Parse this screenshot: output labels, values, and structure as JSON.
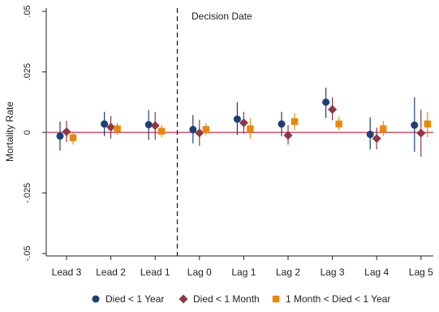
{
  "chart_data": {
    "type": "scatter",
    "ylabel": "Mortality Rate",
    "xlabel": "",
    "categories": [
      "Lead 3",
      "Lead 2",
      "Lead 1",
      "Lag 0",
      "Lag 1",
      "Lag 2",
      "Lag 3",
      "Lag 4",
      "Lag 5"
    ],
    "ylim": [
      -0.05,
      0.05
    ],
    "yticks": [
      -0.05,
      -0.025,
      0,
      0.025,
      0.05
    ],
    "ytick_labels": [
      "-.05",
      "-.025",
      "0",
      ".025",
      ".05"
    ],
    "annotation": "Decision Date",
    "decision_line_between": [
      "Lead 1",
      "Lag 0"
    ],
    "zero_line_color": "#c0506a",
    "series": [
      {
        "name": "Died < 1 Year",
        "marker": "circle",
        "color": "#1f3f73",
        "values": [
          -0.0015,
          0.0035,
          0.0032,
          0.0012,
          0.0055,
          0.0035,
          0.0125,
          -0.0008,
          0.003
        ],
        "ci_low": [
          -0.0075,
          -0.0015,
          -0.003,
          -0.0045,
          -0.001,
          -0.0015,
          0.006,
          -0.007,
          -0.008
        ],
        "ci_high": [
          0.0045,
          0.0085,
          0.0092,
          0.0072,
          0.0125,
          0.0085,
          0.0185,
          0.0062,
          0.0145
        ]
      },
      {
        "name": "Died < 1 Month",
        "marker": "diamond",
        "color": "#8e3845",
        "values": [
          0.0003,
          0.0022,
          0.0028,
          -0.0002,
          0.004,
          -0.0012,
          0.0095,
          -0.0025,
          -0.0003
        ],
        "ci_low": [
          -0.004,
          -0.0025,
          -0.003,
          -0.0055,
          -0.0005,
          -0.005,
          0.005,
          -0.007,
          -0.01
        ],
        "ci_high": [
          0.0048,
          0.0068,
          0.0085,
          0.0052,
          0.0085,
          0.003,
          0.0145,
          0.002,
          0.0095
        ]
      },
      {
        "name": "1 Month < Died < 1 Year",
        "marker": "square",
        "color": "#e8880c",
        "values": [
          -0.0022,
          0.0015,
          0.0005,
          0.0012,
          0.0015,
          0.0045,
          0.0035,
          0.0015,
          0.0035
        ],
        "ci_low": [
          -0.005,
          -0.001,
          -0.002,
          -0.0012,
          -0.0025,
          0.001,
          0.001,
          -0.0015,
          -0.002
        ],
        "ci_high": [
          0.0005,
          0.004,
          0.003,
          0.0038,
          0.0058,
          0.008,
          0.0065,
          0.0048,
          0.0085
        ]
      }
    ]
  }
}
